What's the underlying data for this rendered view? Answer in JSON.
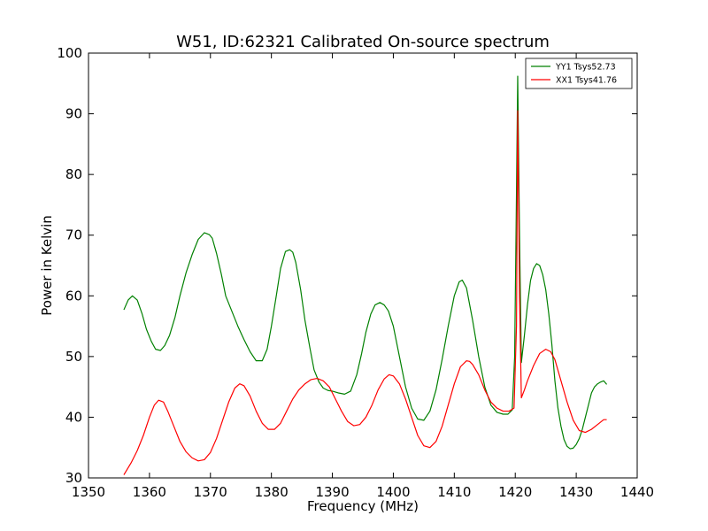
{
  "chart_data": {
    "type": "line",
    "title": "W51, ID:62321 Calibrated On-source spectrum",
    "xlabel": "Frequency (MHz)",
    "ylabel": "Power in Kelvin",
    "xlim": [
      1350,
      1440
    ],
    "ylim": [
      30,
      100
    ],
    "xticks": [
      1350,
      1360,
      1370,
      1380,
      1390,
      1400,
      1410,
      1420,
      1430,
      1440
    ],
    "yticks": [
      30,
      40,
      50,
      60,
      70,
      80,
      90,
      100
    ],
    "grid": false,
    "legend_position": "top-right",
    "series": [
      {
        "name": "YY1 Tsys52.73",
        "color": "#008000",
        "x": [
          1355.8,
          1356.5,
          1357.2,
          1358.0,
          1358.8,
          1359.5,
          1360.3,
          1361.0,
          1361.8,
          1362.5,
          1363.3,
          1364.2,
          1365.0,
          1366.0,
          1367.0,
          1368.0,
          1369.0,
          1369.8,
          1370.3,
          1371.0,
          1371.8,
          1372.5,
          1373.5,
          1374.5,
          1375.5,
          1376.5,
          1377.5,
          1378.5,
          1379.3,
          1380.0,
          1380.8,
          1381.5,
          1382.3,
          1383.0,
          1383.5,
          1384.0,
          1384.8,
          1385.5,
          1386.3,
          1387.0,
          1387.8,
          1388.5,
          1389.3,
          1390.0,
          1391.0,
          1392.0,
          1393.0,
          1394.0,
          1394.8,
          1395.5,
          1396.3,
          1397.0,
          1397.8,
          1398.5,
          1399.2,
          1400.0,
          1401.0,
          1402.0,
          1403.0,
          1404.0,
          1405.0,
          1406.0,
          1407.0,
          1408.0,
          1409.0,
          1410.0,
          1410.8,
          1411.3,
          1412.0,
          1413.0,
          1414.0,
          1415.0,
          1416.0,
          1417.0,
          1418.0,
          1418.8,
          1419.5,
          1419.9,
          1420.2,
          1420.4,
          1420.7,
          1421.0,
          1421.5,
          1422.0,
          1422.5,
          1423.0,
          1423.5,
          1424.0,
          1424.5,
          1425.0,
          1425.5,
          1426.0,
          1426.5,
          1427.0,
          1427.5,
          1428.0,
          1428.5,
          1429.0,
          1429.5,
          1430.0,
          1430.5,
          1431.0,
          1431.5,
          1432.0,
          1432.5,
          1433.0,
          1433.5,
          1434.0,
          1434.5,
          1435.0
        ],
        "y": [
          57.7,
          59.3,
          60.0,
          59.3,
          57.0,
          54.5,
          52.5,
          51.2,
          51.0,
          51.8,
          53.5,
          56.5,
          60.0,
          63.8,
          66.8,
          69.3,
          70.4,
          70.1,
          69.5,
          67.0,
          63.5,
          60.0,
          57.5,
          55.0,
          52.8,
          50.8,
          49.3,
          49.3,
          51.2,
          55.0,
          60.0,
          64.5,
          67.3,
          67.6,
          67.2,
          65.5,
          61.0,
          56.0,
          51.5,
          47.8,
          45.8,
          44.8,
          44.4,
          44.3,
          44.0,
          43.8,
          44.3,
          47.0,
          50.5,
          54.0,
          57.0,
          58.5,
          58.9,
          58.5,
          57.5,
          55.0,
          50.0,
          45.0,
          41.5,
          39.7,
          39.5,
          41.0,
          44.5,
          49.5,
          55.0,
          60.0,
          62.3,
          62.6,
          61.3,
          56.0,
          50.0,
          45.0,
          42.0,
          40.8,
          40.5,
          40.5,
          41.2,
          50.0,
          77.0,
          96.2,
          70.0,
          49.0,
          53.5,
          58.5,
          62.5,
          64.5,
          65.3,
          65.0,
          63.5,
          61.0,
          57.0,
          52.0,
          46.0,
          41.5,
          38.5,
          36.3,
          35.2,
          34.8,
          34.9,
          35.5,
          36.5,
          38.0,
          40.0,
          42.0,
          44.0,
          45.0,
          45.5,
          45.8,
          46.0,
          45.4
        ]
      },
      {
        "name": "XX1 Tsys41.76",
        "color": "#ff0000",
        "x": [
          1355.8,
          1357.0,
          1358.0,
          1359.0,
          1360.0,
          1360.8,
          1361.5,
          1362.3,
          1363.0,
          1364.0,
          1365.0,
          1366.0,
          1367.0,
          1368.0,
          1369.0,
          1370.0,
          1371.0,
          1372.0,
          1373.0,
          1374.0,
          1374.8,
          1375.5,
          1376.5,
          1377.5,
          1378.5,
          1379.5,
          1380.5,
          1381.5,
          1382.5,
          1383.5,
          1384.5,
          1385.5,
          1386.5,
          1387.5,
          1388.5,
          1389.5,
          1390.5,
          1391.5,
          1392.5,
          1393.5,
          1394.5,
          1395.5,
          1396.5,
          1397.5,
          1398.5,
          1399.3,
          1400.0,
          1401.0,
          1402.0,
          1403.0,
          1404.0,
          1405.0,
          1406.0,
          1407.0,
          1408.0,
          1409.0,
          1410.0,
          1411.0,
          1412.0,
          1412.5,
          1413.0,
          1414.0,
          1415.0,
          1416.0,
          1417.0,
          1418.0,
          1419.0,
          1419.8,
          1420.2,
          1420.4,
          1420.7,
          1421.0,
          1421.5,
          1422.0,
          1423.0,
          1424.0,
          1425.0,
          1425.8,
          1426.5,
          1427.5,
          1428.5,
          1429.5,
          1430.5,
          1431.5,
          1432.5,
          1433.5,
          1434.5,
          1435.0
        ],
        "y": [
          30.5,
          32.5,
          34.5,
          37.0,
          40.0,
          42.0,
          42.8,
          42.5,
          41.0,
          38.5,
          36.0,
          34.3,
          33.3,
          32.8,
          33.0,
          34.2,
          36.5,
          39.5,
          42.5,
          44.8,
          45.5,
          45.2,
          43.5,
          41.0,
          39.0,
          38.0,
          38.0,
          39.0,
          41.0,
          43.0,
          44.5,
          45.5,
          46.2,
          46.4,
          46.0,
          45.0,
          43.0,
          41.0,
          39.3,
          38.6,
          38.8,
          40.0,
          42.0,
          44.5,
          46.3,
          47.0,
          46.8,
          45.5,
          43.0,
          40.0,
          37.0,
          35.3,
          35.0,
          36.0,
          38.5,
          42.0,
          45.5,
          48.3,
          49.3,
          49.2,
          48.7,
          47.0,
          44.5,
          42.5,
          41.5,
          41.0,
          41.0,
          41.5,
          55.0,
          90.5,
          60.0,
          43.2,
          44.5,
          46.0,
          48.5,
          50.5,
          51.2,
          50.8,
          49.5,
          46.0,
          42.5,
          39.5,
          37.8,
          37.5,
          38.0,
          38.8,
          39.6,
          39.6
        ]
      }
    ]
  }
}
